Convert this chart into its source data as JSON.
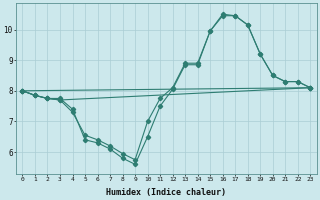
{
  "bg_color": "#cce8ec",
  "grid_color": "#aacdd4",
  "line_color": "#2e7d72",
  "series1_x": [
    0,
    1,
    2,
    3,
    4,
    5,
    6,
    7,
    8,
    9,
    10,
    11,
    12,
    13,
    14,
    15,
    16,
    17,
    18,
    19,
    20,
    21,
    22,
    23
  ],
  "series1_y": [
    8.0,
    7.85,
    7.75,
    7.75,
    7.4,
    6.4,
    6.3,
    6.1,
    5.8,
    5.6,
    6.5,
    7.5,
    8.05,
    8.85,
    8.85,
    9.95,
    10.45,
    10.45,
    10.15,
    9.2,
    8.5,
    8.3,
    8.3,
    8.1
  ],
  "series2_x": [
    0,
    1,
    2,
    3,
    4,
    5,
    6,
    7,
    8,
    9,
    10,
    11,
    12,
    13,
    14,
    15,
    16,
    17,
    18,
    19,
    20,
    21,
    22,
    23
  ],
  "series2_y": [
    8.0,
    7.85,
    7.75,
    7.7,
    7.3,
    6.55,
    6.4,
    6.2,
    5.95,
    5.75,
    7.0,
    7.75,
    8.1,
    8.9,
    8.9,
    9.95,
    10.5,
    10.45,
    10.15,
    9.2,
    8.5,
    8.3,
    8.3,
    8.1
  ],
  "series3_x": [
    0,
    1,
    2,
    3,
    23
  ],
  "series3_y": [
    8.0,
    7.85,
    7.75,
    7.7,
    8.1
  ],
  "series4_x": [
    0,
    23
  ],
  "series4_y": [
    8.0,
    8.1
  ],
  "xlabel": "Humidex (Indice chaleur)",
  "xlim": [
    -0.5,
    23.5
  ],
  "ylim": [
    5.3,
    10.85
  ],
  "yticks": [
    6,
    7,
    8,
    9,
    10
  ],
  "xticks": [
    0,
    1,
    2,
    3,
    4,
    5,
    6,
    7,
    8,
    9,
    10,
    11,
    12,
    13,
    14,
    15,
    16,
    17,
    18,
    19,
    20,
    21,
    22,
    23
  ]
}
